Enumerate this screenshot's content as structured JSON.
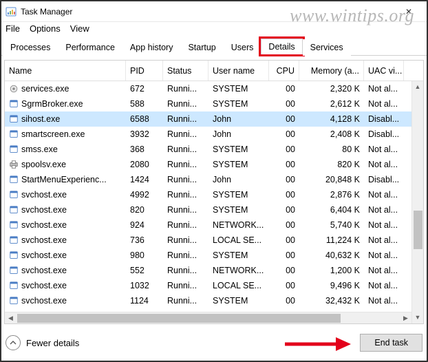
{
  "window": {
    "title": "Task Manager",
    "close_glyph": "✕"
  },
  "watermark": "www.wintips.org",
  "menu": {
    "file": "File",
    "options": "Options",
    "view": "View"
  },
  "tabs": {
    "processes": "Processes",
    "performance": "Performance",
    "app_history": "App history",
    "startup": "Startup",
    "users": "Users",
    "details": "Details",
    "services": "Services"
  },
  "columns": {
    "name": "Name",
    "pid": "PID",
    "status": "Status",
    "user": "User name",
    "cpu": "CPU",
    "memory": "Memory (a...",
    "uac": "UAC vi..."
  },
  "status_text": "Runni...",
  "users": {
    "system": "SYSTEM",
    "john": "John",
    "network": "NETWORK...",
    "local": "LOCAL SE..."
  },
  "uac": {
    "notal": "Not al...",
    "disabl": "Disabl..."
  },
  "rows": [
    {
      "name": "services.exe",
      "pid": "672",
      "user": "system",
      "cpu": "00",
      "mem": "2,320 K",
      "uac": "notal",
      "icon": "gear"
    },
    {
      "name": "SgrmBroker.exe",
      "pid": "588",
      "user": "system",
      "cpu": "00",
      "mem": "2,612 K",
      "uac": "notal",
      "icon": "app"
    },
    {
      "name": "sihost.exe",
      "pid": "6588",
      "user": "john",
      "cpu": "00",
      "mem": "4,128 K",
      "uac": "disabl",
      "icon": "app",
      "selected": true
    },
    {
      "name": "smartscreen.exe",
      "pid": "3932",
      "user": "john",
      "cpu": "00",
      "mem": "2,408 K",
      "uac": "disabl",
      "icon": "app"
    },
    {
      "name": "smss.exe",
      "pid": "368",
      "user": "system",
      "cpu": "00",
      "mem": "80 K",
      "uac": "notal",
      "icon": "app"
    },
    {
      "name": "spoolsv.exe",
      "pid": "2080",
      "user": "system",
      "cpu": "00",
      "mem": "820 K",
      "uac": "notal",
      "icon": "print"
    },
    {
      "name": "StartMenuExperienc...",
      "pid": "1424",
      "user": "john",
      "cpu": "00",
      "mem": "20,848 K",
      "uac": "disabl",
      "icon": "app"
    },
    {
      "name": "svchost.exe",
      "pid": "4992",
      "user": "system",
      "cpu": "00",
      "mem": "2,876 K",
      "uac": "notal",
      "icon": "app"
    },
    {
      "name": "svchost.exe",
      "pid": "820",
      "user": "system",
      "cpu": "00",
      "mem": "6,404 K",
      "uac": "notal",
      "icon": "app"
    },
    {
      "name": "svchost.exe",
      "pid": "924",
      "user": "network",
      "cpu": "00",
      "mem": "5,740 K",
      "uac": "notal",
      "icon": "app"
    },
    {
      "name": "svchost.exe",
      "pid": "736",
      "user": "local",
      "cpu": "00",
      "mem": "11,224 K",
      "uac": "notal",
      "icon": "app"
    },
    {
      "name": "svchost.exe",
      "pid": "980",
      "user": "system",
      "cpu": "00",
      "mem": "40,632 K",
      "uac": "notal",
      "icon": "app"
    },
    {
      "name": "svchost.exe",
      "pid": "552",
      "user": "network",
      "cpu": "00",
      "mem": "1,200 K",
      "uac": "notal",
      "icon": "app"
    },
    {
      "name": "svchost.exe",
      "pid": "1032",
      "user": "local",
      "cpu": "00",
      "mem": "9,496 K",
      "uac": "notal",
      "icon": "app"
    },
    {
      "name": "svchost.exe",
      "pid": "1124",
      "user": "system",
      "cpu": "00",
      "mem": "32,432 K",
      "uac": "notal",
      "icon": "app"
    }
  ],
  "footer": {
    "fewer": "Fewer details",
    "end_task": "End task"
  },
  "colors": {
    "highlight_red": "#e3001b",
    "row_selected": "#cde8ff",
    "button_bg": "#e1e1e1",
    "border": "#d0d0d0"
  }
}
